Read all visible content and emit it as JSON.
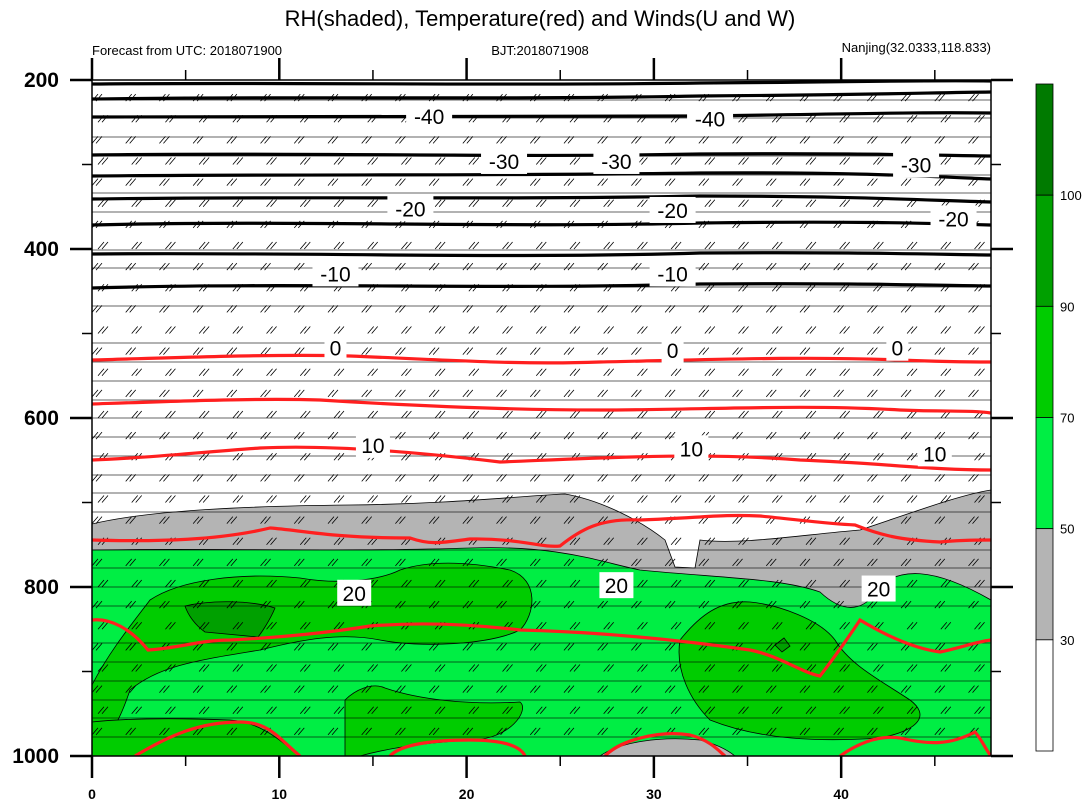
{
  "chart_data": {
    "type": "contour",
    "title": "RH(shaded), Temperature(red) and Winds(U and W)",
    "left_string": "Forecast from UTC: 2018071900",
    "center_string": "BJT:2018071908",
    "right_string": "Nanjing(32.0333,118.833)",
    "x_ticks": [
      0,
      10,
      20,
      30,
      40
    ],
    "xlim": [
      0,
      48
    ],
    "y_ticks": [
      200,
      400,
      600,
      800,
      1000
    ],
    "ylim": [
      1000,
      200
    ],
    "y_reversed": true,
    "rh_levels": [
      30,
      50,
      70,
      90,
      100
    ],
    "rh_colors": [
      "#ffffff",
      "#b4b4b4",
      "#00ee44",
      "#00cc00",
      "#00a000",
      "#007a00"
    ],
    "temperature_contours": [
      {
        "level": -40,
        "color": "#000000",
        "labels": [
          {
            "x": 18,
            "y": 244
          },
          {
            "x": 33,
            "y": 247
          }
        ]
      },
      {
        "level": -30,
        "color": "#000000",
        "labels": [
          {
            "x": 22,
            "y": 297
          },
          {
            "x": 28,
            "y": 297
          },
          {
            "x": 44,
            "y": 301
          }
        ]
      },
      {
        "level": -20,
        "color": "#000000",
        "labels": [
          {
            "x": 17,
            "y": 353
          },
          {
            "x": 31,
            "y": 355
          },
          {
            "x": 46,
            "y": 365
          }
        ]
      },
      {
        "level": -10,
        "color": "#000000",
        "labels": [
          {
            "x": 13,
            "y": 430
          },
          {
            "x": 31,
            "y": 430
          }
        ]
      },
      {
        "level": 0,
        "color": "#000000",
        "labels": [
          {
            "x": 13,
            "y": 518
          },
          {
            "x": 31,
            "y": 521
          },
          {
            "x": 43,
            "y": 518
          }
        ]
      },
      {
        "level": 10,
        "color": "#ff1f1f",
        "labels": [
          {
            "x": 15,
            "y": 633
          },
          {
            "x": 32,
            "y": 637
          },
          {
            "x": 45,
            "y": 643
          }
        ]
      },
      {
        "level": 20,
        "color": "#ff1f1f",
        "labels": [
          {
            "x": 14,
            "y": 808
          },
          {
            "x": 28,
            "y": 799
          },
          {
            "x": 42,
            "y": 803
          }
        ]
      }
    ],
    "wind_barbs": "full-field U and W barbs on regular grid"
  }
}
